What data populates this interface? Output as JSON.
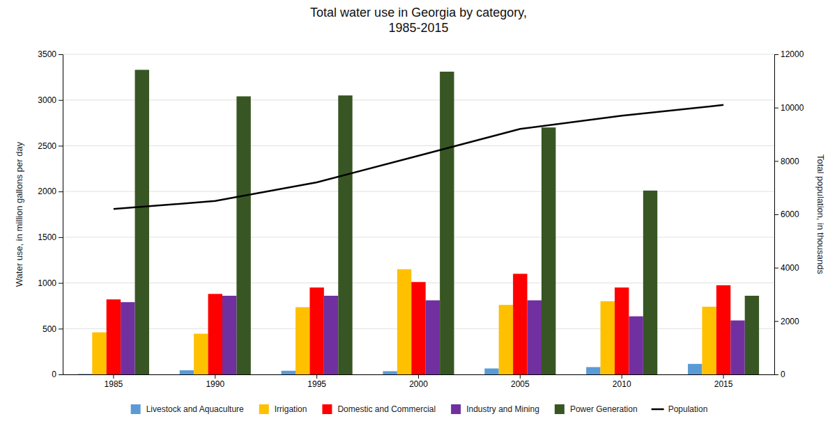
{
  "chart_data": {
    "type": "bar",
    "title": "Total water use in Georgia by category,\n1985-2015",
    "categories": [
      1985,
      1990,
      1995,
      2000,
      2005,
      2010,
      2015
    ],
    "series": [
      {
        "name": "Livestock and Aquaculture",
        "color": "#5B9BD5",
        "values": [
          5,
          45,
          40,
          35,
          65,
          80,
          115
        ]
      },
      {
        "name": "Irrigation",
        "color": "#FFC000",
        "values": [
          460,
          445,
          735,
          1150,
          760,
          800,
          740
        ]
      },
      {
        "name": "Domestic and Commercial",
        "color": "#FF0000",
        "values": [
          820,
          880,
          950,
          1010,
          1100,
          950,
          975
        ]
      },
      {
        "name": "Industry and Mining",
        "color": "#7030A0",
        "values": [
          790,
          860,
          860,
          810,
          810,
          635,
          590
        ]
      },
      {
        "name": "Power Generation",
        "color": "#375623",
        "values": [
          3330,
          3040,
          3050,
          3310,
          2700,
          2010,
          860
        ]
      },
      {
        "name": "Population",
        "type": "line",
        "axis": "y2",
        "color": "#000000",
        "values": [
          6200,
          6500,
          7200,
          8200,
          9200,
          9700,
          10100
        ]
      }
    ],
    "ylabel": "Water use, in million gallons per day",
    "y2label": "Total population, in thousands",
    "ylim": [
      0,
      3500
    ],
    "yticks": [
      0,
      500,
      1000,
      1500,
      2000,
      2500,
      3000,
      3500
    ],
    "y2lim": [
      0,
      12000
    ],
    "y2ticks": [
      0,
      2000,
      4000,
      6000,
      8000,
      10000,
      12000
    ],
    "grid": true,
    "legend": "bottom"
  }
}
